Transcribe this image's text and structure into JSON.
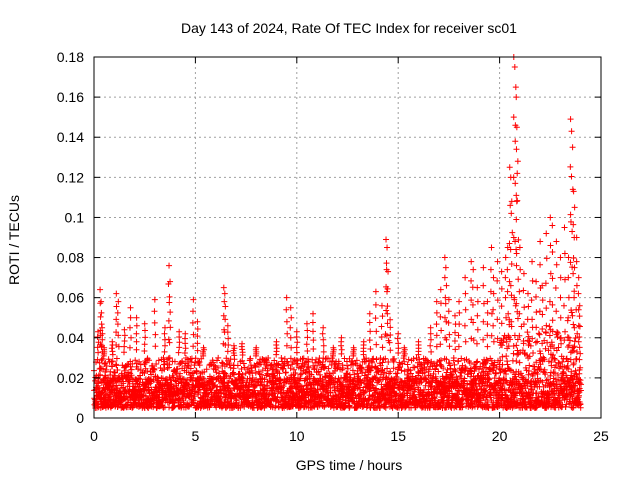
{
  "chart_data": {
    "type": "scatter",
    "title": "Day 143 of 2024, Rate Of TEC Index for receiver sc01",
    "xlabel": "GPS time / hours",
    "ylabel": "ROTI / TECUs",
    "xlim": [
      0,
      25
    ],
    "ylim": [
      0,
      0.18
    ],
    "xticks": [
      0,
      5,
      10,
      15,
      20,
      25
    ],
    "xtick_labels": [
      "0",
      "5",
      "10",
      "15",
      "20",
      "25"
    ],
    "yticks": [
      0,
      0.02,
      0.04,
      0.06,
      0.08,
      0.1,
      0.12,
      0.14,
      0.16,
      0.18
    ],
    "ytick_labels": [
      "0",
      "0.02",
      "0.04",
      "0.06",
      "0.08",
      "0.1",
      "0.12",
      "0.14",
      "0.16",
      "0.18"
    ],
    "grid": true,
    "marker": "+",
    "color": "#ff0000",
    "series": [
      {
        "name": "ROTI",
        "points": [
          [
            0.2,
            0.043
          ],
          [
            0.3,
            0.064
          ],
          [
            0.35,
            0.058
          ],
          [
            0.4,
            0.045
          ],
          [
            0.5,
            0.035
          ],
          [
            0.9,
            0.038
          ],
          [
            1.1,
            0.062
          ],
          [
            1.2,
            0.058
          ],
          [
            1.5,
            0.044
          ],
          [
            1.8,
            0.055
          ],
          [
            2.1,
            0.05
          ],
          [
            2.5,
            0.047
          ],
          [
            3.0,
            0.059
          ],
          [
            3.5,
            0.045
          ],
          [
            3.7,
            0.076
          ],
          [
            3.75,
            0.068
          ],
          [
            4.2,
            0.043
          ],
          [
            4.5,
            0.042
          ],
          [
            4.9,
            0.059
          ],
          [
            5.1,
            0.048
          ],
          [
            5.4,
            0.035
          ],
          [
            6.4,
            0.065
          ],
          [
            6.45,
            0.062
          ],
          [
            6.6,
            0.046
          ],
          [
            6.9,
            0.036
          ],
          [
            7.3,
            0.037
          ],
          [
            8.0,
            0.035
          ],
          [
            8.5,
            0.026
          ],
          [
            9.0,
            0.038
          ],
          [
            9.5,
            0.06
          ],
          [
            9.7,
            0.055
          ],
          [
            10.0,
            0.043
          ],
          [
            10.5,
            0.047
          ],
          [
            10.8,
            0.052
          ],
          [
            11.3,
            0.045
          ],
          [
            11.8,
            0.035
          ],
          [
            12.2,
            0.04
          ],
          [
            12.8,
            0.035
          ],
          [
            13.3,
            0.038
          ],
          [
            13.6,
            0.052
          ],
          [
            13.9,
            0.063
          ],
          [
            14.2,
            0.056
          ],
          [
            14.4,
            0.089
          ],
          [
            14.45,
            0.085
          ],
          [
            14.5,
            0.073
          ],
          [
            14.6,
            0.049
          ],
          [
            15.0,
            0.042
          ],
          [
            15.3,
            0.035
          ],
          [
            16.0,
            0.038
          ],
          [
            16.6,
            0.045
          ],
          [
            16.9,
            0.058
          ],
          [
            17.1,
            0.064
          ],
          [
            17.3,
            0.08
          ],
          [
            17.35,
            0.075
          ],
          [
            17.5,
            0.059
          ],
          [
            17.8,
            0.051
          ],
          [
            18.0,
            0.058
          ],
          [
            18.3,
            0.07
          ],
          [
            18.6,
            0.078
          ],
          [
            18.7,
            0.074
          ],
          [
            18.9,
            0.065
          ],
          [
            19.2,
            0.075
          ],
          [
            19.4,
            0.058
          ],
          [
            19.6,
            0.085
          ],
          [
            19.7,
            0.07
          ],
          [
            19.9,
            0.078
          ],
          [
            20.1,
            0.073
          ],
          [
            20.3,
            0.08
          ],
          [
            20.4,
            0.085
          ],
          [
            20.5,
            0.125
          ],
          [
            20.55,
            0.12
          ],
          [
            20.6,
            0.108
          ],
          [
            20.7,
            0.18
          ],
          [
            20.75,
            0.175
          ],
          [
            20.8,
            0.165
          ],
          [
            20.82,
            0.16
          ],
          [
            20.85,
            0.145
          ],
          [
            20.9,
            0.128
          ],
          [
            21.0,
            0.085
          ],
          [
            21.2,
            0.072
          ],
          [
            21.4,
            0.062
          ],
          [
            21.6,
            0.078
          ],
          [
            21.8,
            0.068
          ],
          [
            22.0,
            0.088
          ],
          [
            22.1,
            0.066
          ],
          [
            22.3,
            0.092
          ],
          [
            22.5,
            0.1
          ],
          [
            22.6,
            0.096
          ],
          [
            22.8,
            0.088
          ],
          [
            23.0,
            0.08
          ],
          [
            23.2,
            0.095
          ],
          [
            23.4,
            0.08
          ],
          [
            23.5,
            0.149
          ],
          [
            23.55,
            0.143
          ],
          [
            23.6,
            0.135
          ],
          [
            23.65,
            0.113
          ],
          [
            23.7,
            0.105
          ],
          [
            23.8,
            0.09
          ],
          [
            23.9,
            0.07
          ],
          [
            23.95,
            0.056
          ]
        ]
      }
    ],
    "noise_band": {
      "note": "dense cluster of ROTI values between roughly 0.005 and 0.03 TECUs over the full 0-24 h span, rising toward 0.04-0.06 after 20 h",
      "x_range": [
        0,
        24
      ],
      "baseline_low": 0.005,
      "baseline_high": 0.03
    }
  }
}
